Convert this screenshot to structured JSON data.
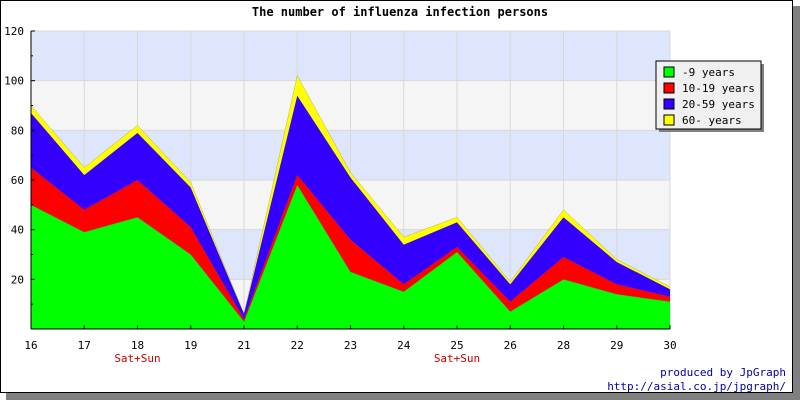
{
  "chart_data": {
    "type": "area",
    "stacked": true,
    "title": "The number of influenza infection persons",
    "xlabel": "",
    "ylabel": "",
    "categories": [
      "16",
      "17",
      "18",
      "19",
      "21",
      "22",
      "23",
      "24",
      "25",
      "26",
      "28",
      "29",
      "30"
    ],
    "ylim": [
      0,
      120
    ],
    "yticks": [
      20,
      40,
      60,
      80,
      100,
      120
    ],
    "series": [
      {
        "name": "-9 years",
        "color": "#00ff00",
        "values": [
          50,
          39,
          45,
          30,
          3,
          58,
          23,
          15,
          31,
          7,
          20,
          14,
          11
        ]
      },
      {
        "name": "10-19 years",
        "color": "#ff0000",
        "values": [
          15,
          9,
          15,
          11,
          1,
          4,
          13,
          3,
          2,
          4,
          9,
          4,
          2
        ]
      },
      {
        "name": "20-59 years",
        "color": "#3300ff",
        "values": [
          22,
          14,
          19,
          16,
          2,
          32,
          25,
          16,
          10,
          7,
          16,
          9,
          3
        ]
      },
      {
        "name": "60- years",
        "color": "#ffff00",
        "values": [
          3,
          3,
          3,
          2,
          0,
          8,
          2,
          3,
          2,
          1,
          3,
          1,
          1
        ]
      }
    ],
    "annotations": [
      {
        "category": "18",
        "text": "Sat+Sun"
      },
      {
        "category": "25",
        "text": "Sat+Sun"
      }
    ],
    "band_colors": [
      "#dde6fd",
      "#f5f5f5"
    ],
    "grid": true,
    "legend_position": "right"
  },
  "credits": {
    "line1": "produced by JpGraph",
    "line2": "http://asial.co.jp/jpgraph/"
  }
}
